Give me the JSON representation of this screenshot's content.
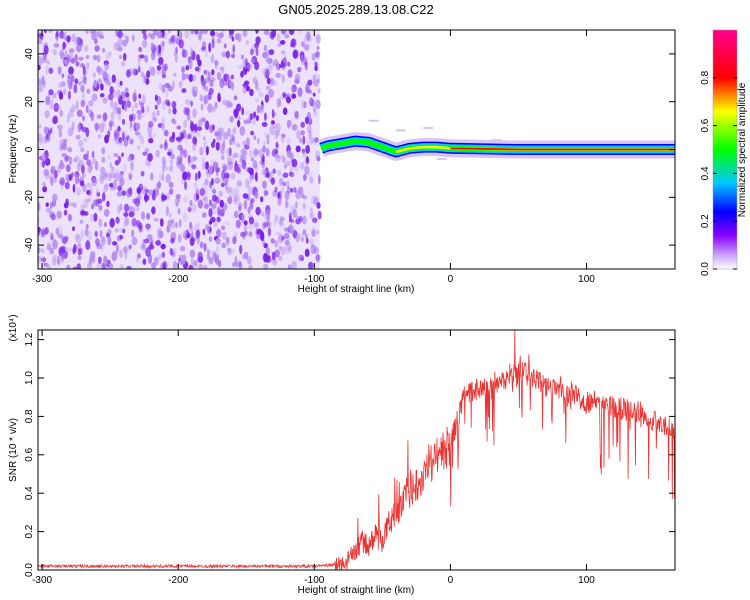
{
  "title": "GN05.2025.289.13.08.C22",
  "chart_data": [
    {
      "type": "heatmap",
      "xlabel": "Height of straight line (km)",
      "ylabel": "Frequency (Hz)",
      "xlim": [
        -303,
        165
      ],
      "ylim": [
        -50,
        50
      ],
      "x_ticks": [
        -300,
        -200,
        -100,
        0,
        100
      ],
      "x_tick_labels": [
        "-300",
        "-200",
        "-100",
        "0",
        "100"
      ],
      "y_ticks": [
        -40,
        -20,
        0,
        20,
        40
      ],
      "y_tick_labels": [
        "-40",
        "-20",
        "0",
        "20",
        "40"
      ],
      "colorbar": {
        "label": "Normalized spectral amplitude",
        "range": [
          0,
          1
        ],
        "ticks": [
          0.0,
          0.2,
          0.4,
          0.6,
          0.8
        ],
        "tick_labels": [
          "0.0",
          "0.2",
          "0.4",
          "0.6",
          "0.8"
        ],
        "colors": [
          "#ffffff",
          "#8a00ff",
          "#0000ff",
          "#00c8ff",
          "#00ff00",
          "#ffff00",
          "#ff0000",
          "#ff0090"
        ]
      },
      "noise_region": {
        "x_range": [
          -303,
          -96
        ],
        "color": "#7a20e8"
      },
      "signal_ridge": [
        {
          "x": -95,
          "f": 0.5,
          "amp": 0.35
        },
        {
          "x": -90,
          "f": 1.5,
          "amp": 0.4
        },
        {
          "x": -80,
          "f": 2.5,
          "amp": 0.42
        },
        {
          "x": -70,
          "f": 3.5,
          "amp": 0.45
        },
        {
          "x": -60,
          "f": 3.0,
          "amp": 0.5
        },
        {
          "x": -50,
          "f": 1.0,
          "amp": 0.55
        },
        {
          "x": -40,
          "f": -1.0,
          "amp": 0.6
        },
        {
          "x": -30,
          "f": 0.5,
          "amp": 0.65
        },
        {
          "x": -20,
          "f": 1.0,
          "amp": 0.7
        },
        {
          "x": -10,
          "f": 1.0,
          "amp": 0.75
        },
        {
          "x": 0,
          "f": 0.5,
          "amp": 0.8
        },
        {
          "x": 50,
          "f": 0.0,
          "amp": 0.9
        },
        {
          "x": 100,
          "f": 0.0,
          "amp": 0.95
        },
        {
          "x": 165,
          "f": 0.0,
          "amp": 0.95
        }
      ]
    },
    {
      "type": "line",
      "xlabel": "Height of straight line (km)",
      "ylabel": "SNR (10 * v/v)",
      "y_scale_label": "(x10⁴)",
      "xlim": [
        -303,
        165
      ],
      "ylim": [
        0,
        1.25
      ],
      "x_ticks": [
        -300,
        -200,
        -100,
        0,
        100
      ],
      "x_tick_labels": [
        "-300",
        "-200",
        "-100",
        "0",
        "100"
      ],
      "y_ticks": [
        0,
        0.2,
        0.4,
        0.6,
        0.8,
        1.0,
        1.2
      ],
      "y_tick_labels": [
        "0.0",
        "0.2",
        "0.4",
        "0.6",
        "0.8",
        "1.0",
        "1.2"
      ],
      "color": "#ee3333",
      "x": [
        -303,
        -200,
        -100,
        -80,
        -75,
        -70,
        -65,
        -60,
        -55,
        -50,
        -45,
        -40,
        -35,
        -30,
        -25,
        -20,
        -15,
        -10,
        -5,
        0,
        5,
        10,
        20,
        30,
        40,
        50,
        60,
        70,
        80,
        90,
        100,
        110,
        120,
        130,
        140,
        150,
        160,
        165
      ],
      "y": [
        0.02,
        0.02,
        0.02,
        0.03,
        0.05,
        0.1,
        0.15,
        0.12,
        0.18,
        0.15,
        0.25,
        0.3,
        0.35,
        0.4,
        0.45,
        0.5,
        0.55,
        0.6,
        0.62,
        0.65,
        0.78,
        0.9,
        0.95,
        0.97,
        1.0,
        1.05,
        1.0,
        0.96,
        0.95,
        0.92,
        0.88,
        0.87,
        0.85,
        0.83,
        0.82,
        0.78,
        0.75,
        0.72
      ]
    }
  ]
}
